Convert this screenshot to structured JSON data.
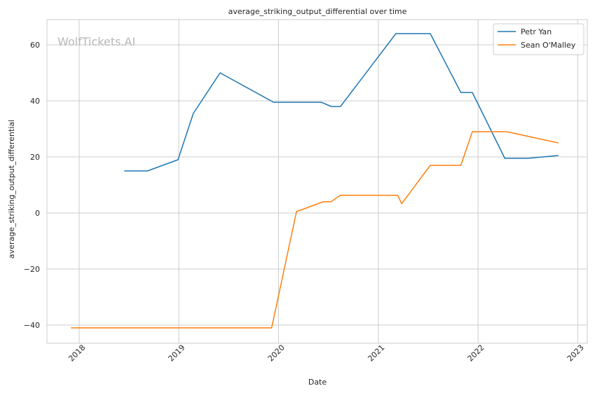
{
  "watermark": "WolfTickets.AI",
  "chart_data": {
    "type": "line",
    "title": "average_striking_output_differential over time",
    "xlabel": "Date",
    "ylabel": "average_striking_output_differential",
    "xlim": [
      "2017-09-05",
      "2023-02-05"
    ],
    "ylim": [
      -46.5,
      69
    ],
    "x_ticks": [
      "2018-01-01",
      "2019-01-01",
      "2020-01-01",
      "2021-01-01",
      "2022-01-01",
      "2023-01-01"
    ],
    "x_tick_labels": [
      "2018",
      "2019",
      "2020",
      "2021",
      "2022",
      "2023"
    ],
    "y_ticks": [
      -40,
      -20,
      0,
      20,
      40,
      60
    ],
    "y_tick_labels": [
      "−40",
      "−20",
      "0",
      "20",
      "40",
      "60"
    ],
    "grid": true,
    "legend_position": "top-right",
    "colors": {
      "Petr Yan": "#1f77b4",
      "Sean O'Malley": "#ff7f0e",
      "grid": "#cccccc",
      "spine": "#cccccc"
    },
    "series": [
      {
        "name": "Petr Yan",
        "x": [
          "2018-06-15",
          "2018-09-08",
          "2018-12-29",
          "2019-02-23",
          "2019-06-01",
          "2019-12-14",
          "2020-06-06",
          "2020-07-12",
          "2020-08-15",
          "2021-03-06",
          "2021-07-10",
          "2021-10-30",
          "2021-12-11",
          "2022-04-09",
          "2022-07-02",
          "2022-10-22"
        ],
        "y": [
          15,
          15,
          19,
          35.5,
          50,
          39.5,
          39.5,
          38,
          38,
          64,
          64,
          43,
          43,
          19.5,
          19.5,
          20.5
        ]
      },
      {
        "name": "Sean O'Malley",
        "x": [
          "2017-12-02",
          "2019-12-07",
          "2020-03-07",
          "2020-06-13",
          "2020-07-11",
          "2020-08-15",
          "2021-03-13",
          "2021-03-27",
          "2021-07-10",
          "2021-10-30",
          "2021-12-11",
          "2022-04-16",
          "2022-10-22"
        ],
        "y": [
          -41,
          -41,
          0.5,
          4,
          4,
          6.3,
          6.3,
          3.3,
          17,
          17,
          29,
          29,
          25
        ]
      }
    ]
  }
}
